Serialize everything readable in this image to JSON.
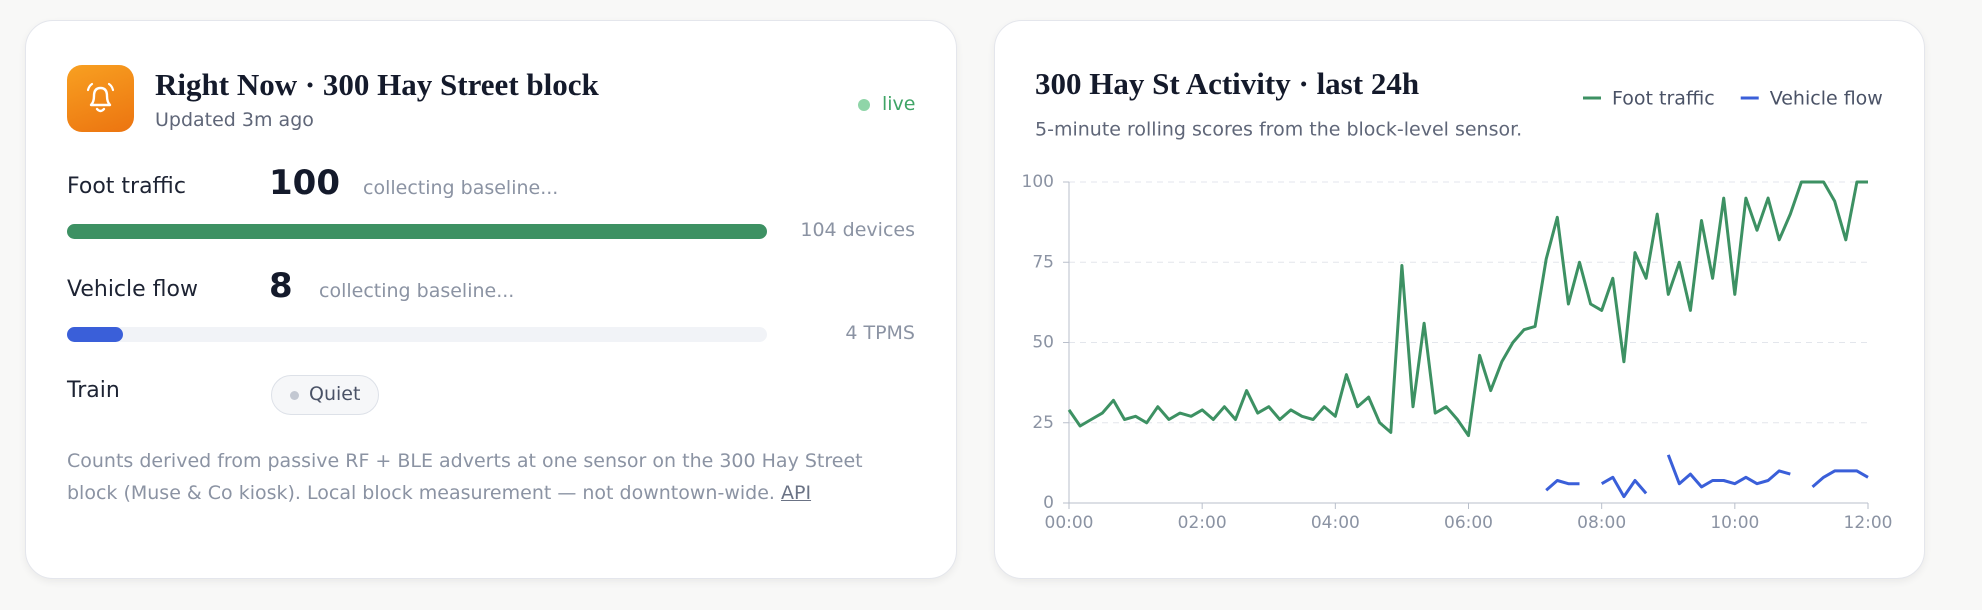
{
  "status_card": {
    "title": "Right Now · 300 Hay Street block",
    "updated": "Updated 3m ago",
    "live": "live",
    "bar_range": [
      0,
      100
    ],
    "metrics": [
      {
        "label": "Foot traffic",
        "value": 100,
        "note": "collecting baseline...",
        "count": "104 devices",
        "color": "#3d9163"
      },
      {
        "label": "Vehicle flow",
        "value": 8,
        "note": "collecting baseline...",
        "count": "4 TPMS",
        "color": "#3a5fd9"
      }
    ],
    "train": {
      "label": "Train",
      "status": "Quiet"
    },
    "footer": {
      "text": "Counts derived from passive RF + BLE adverts at one sensor on the 300 Hay Street block (Muse & Co kiosk). Local block measurement — not downtown-wide.",
      "link": "API"
    }
  },
  "chart_data": {
    "type": "line",
    "title": "300 Hay St Activity · last 24h",
    "subtitle": "5-minute rolling scores from the block-level sensor.",
    "x": [
      0,
      10,
      20,
      30,
      40,
      50,
      60,
      70,
      80,
      90,
      100,
      110,
      120,
      130,
      140,
      150,
      160,
      170,
      180,
      190,
      200,
      210,
      220,
      230,
      240,
      250,
      260,
      270,
      280,
      290,
      300,
      310,
      320,
      330,
      340,
      350,
      360,
      370,
      380,
      390,
      400,
      410,
      420,
      430,
      440,
      450,
      460,
      470,
      480,
      490,
      500,
      510,
      520,
      530,
      540,
      550,
      560,
      570,
      580,
      590,
      600,
      610,
      620,
      630,
      640,
      650,
      660,
      670,
      680,
      690,
      700,
      710,
      720
    ],
    "series": [
      {
        "name": "Foot traffic",
        "color": "#3d9163",
        "values": [
          29,
          24,
          26,
          28,
          32,
          26,
          27,
          25,
          30,
          26,
          28,
          27,
          29,
          26,
          30,
          26,
          35,
          28,
          30,
          26,
          29,
          27,
          26,
          30,
          27,
          40,
          30,
          33,
          25,
          22,
          74,
          30,
          56,
          28,
          30,
          26,
          21,
          46,
          35,
          44,
          50,
          54,
          55,
          76,
          89,
          62,
          75,
          62,
          60,
          70,
          44,
          78,
          70,
          90,
          65,
          75,
          60,
          88,
          70,
          95,
          65,
          95,
          85,
          95,
          82,
          90,
          100,
          100,
          100,
          94,
          82,
          100,
          100
        ]
      },
      {
        "name": "Vehicle flow",
        "color": "#3a5fd9",
        "values": [
          null,
          null,
          null,
          null,
          null,
          null,
          null,
          null,
          null,
          null,
          null,
          null,
          null,
          null,
          null,
          null,
          null,
          null,
          null,
          null,
          null,
          null,
          null,
          null,
          null,
          null,
          null,
          null,
          null,
          null,
          null,
          null,
          null,
          null,
          null,
          null,
          null,
          null,
          null,
          null,
          null,
          null,
          null,
          4,
          7,
          6,
          6,
          null,
          6,
          8,
          2,
          7,
          3,
          null,
          15,
          6,
          9,
          5,
          7,
          7,
          6,
          8,
          6,
          7,
          10,
          9,
          null,
          5,
          8,
          10,
          10,
          10,
          8
        ]
      }
    ],
    "xlim": [
      0,
      720
    ],
    "xticks": [
      {
        "value": 0,
        "label": "00:00"
      },
      {
        "value": 120,
        "label": "02:00"
      },
      {
        "value": 240,
        "label": "04:00"
      },
      {
        "value": 360,
        "label": "06:00"
      },
      {
        "value": 480,
        "label": "08:00"
      },
      {
        "value": 600,
        "label": "10:00"
      },
      {
        "value": 720,
        "label": "12:00"
      }
    ],
    "ylim": [
      0,
      100
    ],
    "yticks": [
      0,
      25,
      50,
      75,
      100
    ],
    "grid": true,
    "legend": "top-right"
  }
}
